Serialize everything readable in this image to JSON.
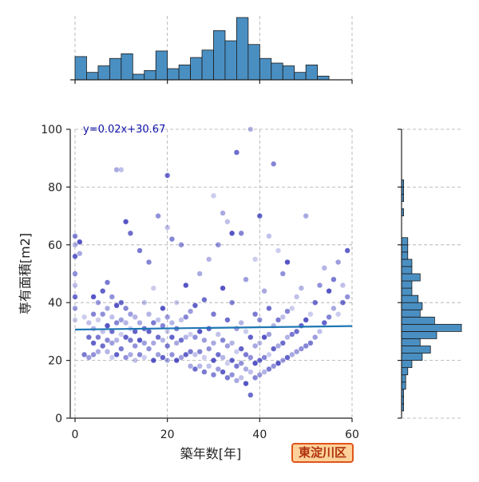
{
  "chart_data": {
    "type": "scatter",
    "xlabel": "築年数[年]",
    "ylabel": "専有面積[m2]",
    "xlim": [
      0,
      60
    ],
    "ylim": [
      0,
      100
    ],
    "x_ticks": [
      0,
      20,
      40,
      60
    ],
    "y_ticks": [
      0,
      20,
      40,
      60,
      80,
      100
    ],
    "grid": true,
    "point_color": "#1515b0",
    "regression": {
      "slope": 0.02,
      "intercept": 30.67,
      "label": "y=0.02x+30.67",
      "color": "#1f77b4",
      "label_color": "#1010aa"
    },
    "ward_label": "東淀川区",
    "badge_colors": {
      "fill": "#fcd29a",
      "border": "#e0541a",
      "text": "#b0310c"
    },
    "hist_color": "#4a8fc2",
    "top_histogram": {
      "bin_width": 2.5,
      "counts": [
        25,
        8,
        15,
        23,
        28,
        6,
        10,
        31,
        12,
        16,
        24,
        32,
        53,
        42,
        67,
        38,
        23,
        18,
        15,
        8,
        16,
        4,
        0
      ]
    },
    "right_histogram": {
      "bin_width": 2.5,
      "counts": [
        0,
        1,
        1,
        1,
        2,
        2,
        3,
        5,
        10,
        14,
        9,
        17,
        29,
        16,
        9,
        10,
        8,
        5,
        5,
        9,
        5,
        5,
        3,
        3,
        3,
        0,
        0,
        0,
        1,
        0,
        1,
        1,
        1,
        0,
        0,
        0,
        0,
        0,
        0,
        0
      ]
    },
    "scatter_points": [
      [
        0,
        34
      ],
      [
        0,
        38
      ],
      [
        0,
        42
      ],
      [
        0,
        46
      ],
      [
        0,
        50
      ],
      [
        0,
        56
      ],
      [
        0,
        60
      ],
      [
        0,
        63
      ],
      [
        1,
        61
      ],
      [
        1,
        57
      ],
      [
        2,
        22
      ],
      [
        2,
        35
      ],
      [
        3,
        21
      ],
      [
        3,
        28
      ],
      [
        3,
        33
      ],
      [
        4,
        22
      ],
      [
        4,
        26
      ],
      [
        4,
        31
      ],
      [
        4,
        36
      ],
      [
        4,
        42
      ],
      [
        5,
        23
      ],
      [
        5,
        28
      ],
      [
        5,
        34
      ],
      [
        5,
        40
      ],
      [
        6,
        25
      ],
      [
        6,
        30
      ],
      [
        6,
        36
      ],
      [
        6,
        44
      ],
      [
        7,
        23
      ],
      [
        7,
        27
      ],
      [
        7,
        32
      ],
      [
        7,
        38
      ],
      [
        7,
        47
      ],
      [
        8,
        21
      ],
      [
        8,
        26
      ],
      [
        8,
        30
      ],
      [
        8,
        35
      ],
      [
        8,
        42
      ],
      [
        9,
        22
      ],
      [
        9,
        27
      ],
      [
        9,
        33
      ],
      [
        9,
        39
      ],
      [
        9,
        86
      ],
      [
        10,
        24
      ],
      [
        10,
        29
      ],
      [
        10,
        34
      ],
      [
        10,
        40
      ],
      [
        10,
        86
      ],
      [
        11,
        21
      ],
      [
        11,
        28
      ],
      [
        11,
        33
      ],
      [
        11,
        38
      ],
      [
        11,
        68
      ],
      [
        12,
        22
      ],
      [
        12,
        27
      ],
      [
        12,
        31
      ],
      [
        12,
        36
      ],
      [
        12,
        64
      ],
      [
        13,
        20
      ],
      [
        13,
        25
      ],
      [
        13,
        30
      ],
      [
        13,
        35
      ],
      [
        14,
        22
      ],
      [
        14,
        27
      ],
      [
        14,
        33
      ],
      [
        14,
        58
      ],
      [
        15,
        21
      ],
      [
        15,
        26
      ],
      [
        15,
        31
      ],
      [
        15,
        40
      ],
      [
        16,
        24
      ],
      [
        16,
        30
      ],
      [
        16,
        36
      ],
      [
        16,
        54
      ],
      [
        17,
        20
      ],
      [
        17,
        26
      ],
      [
        17,
        33
      ],
      [
        17,
        45
      ],
      [
        18,
        22
      ],
      [
        18,
        28
      ],
      [
        18,
        34
      ],
      [
        18,
        70
      ],
      [
        19,
        21
      ],
      [
        19,
        27
      ],
      [
        19,
        32
      ],
      [
        19,
        38
      ],
      [
        20,
        20
      ],
      [
        20,
        25
      ],
      [
        20,
        30
      ],
      [
        20,
        35
      ],
      [
        20,
        84
      ],
      [
        20,
        66
      ],
      [
        21,
        22
      ],
      [
        21,
        28
      ],
      [
        21,
        33
      ],
      [
        21,
        62
      ],
      [
        22,
        20
      ],
      [
        22,
        26
      ],
      [
        22,
        31
      ],
      [
        22,
        40
      ],
      [
        23,
        21
      ],
      [
        23,
        27
      ],
      [
        23,
        34
      ],
      [
        23,
        60
      ],
      [
        24,
        22
      ],
      [
        24,
        28
      ],
      [
        24,
        35
      ],
      [
        24,
        46
      ],
      [
        25,
        18
      ],
      [
        25,
        23
      ],
      [
        25,
        29
      ],
      [
        25,
        37
      ],
      [
        26,
        17
      ],
      [
        26,
        22
      ],
      [
        26,
        28
      ],
      [
        26,
        39
      ],
      [
        27,
        18
      ],
      [
        27,
        23
      ],
      [
        27,
        30
      ],
      [
        27,
        50
      ],
      [
        28,
        16
      ],
      [
        28,
        21
      ],
      [
        28,
        27
      ],
      [
        28,
        41
      ],
      [
        29,
        18
      ],
      [
        29,
        24
      ],
      [
        29,
        31
      ],
      [
        29,
        55
      ],
      [
        30,
        15
      ],
      [
        30,
        20
      ],
      [
        30,
        26
      ],
      [
        30,
        36
      ],
      [
        30,
        77
      ],
      [
        31,
        17
      ],
      [
        31,
        22
      ],
      [
        31,
        29
      ],
      [
        31,
        60
      ],
      [
        32,
        16
      ],
      [
        32,
        21
      ],
      [
        32,
        27
      ],
      [
        32,
        45
      ],
      [
        32,
        71
      ],
      [
        33,
        14
      ],
      [
        33,
        19
      ],
      [
        33,
        25
      ],
      [
        33,
        34
      ],
      [
        33,
        68
      ],
      [
        34,
        15
      ],
      [
        34,
        20
      ],
      [
        34,
        26
      ],
      [
        34,
        40
      ],
      [
        34,
        64
      ],
      [
        35,
        13
      ],
      [
        35,
        18
      ],
      [
        35,
        23
      ],
      [
        35,
        31
      ],
      [
        35,
        92
      ],
      [
        36,
        14
      ],
      [
        36,
        19
      ],
      [
        36,
        24
      ],
      [
        36,
        33
      ],
      [
        36,
        64
      ],
      [
        37,
        12
      ],
      [
        37,
        17
      ],
      [
        37,
        22
      ],
      [
        37,
        30
      ],
      [
        37,
        48
      ],
      [
        38,
        8
      ],
      [
        38,
        16
      ],
      [
        38,
        21
      ],
      [
        38,
        28
      ],
      [
        38,
        100
      ],
      [
        39,
        14
      ],
      [
        39,
        19
      ],
      [
        39,
        25
      ],
      [
        39,
        36
      ],
      [
        39,
        55
      ],
      [
        40,
        15
      ],
      [
        40,
        20
      ],
      [
        40,
        26
      ],
      [
        40,
        34
      ],
      [
        40,
        70
      ],
      [
        41,
        16
      ],
      [
        41,
        21
      ],
      [
        41,
        28
      ],
      [
        41,
        44
      ],
      [
        42,
        17
      ],
      [
        42,
        22
      ],
      [
        42,
        29
      ],
      [
        42,
        38
      ],
      [
        42,
        63
      ],
      [
        43,
        18
      ],
      [
        43,
        24
      ],
      [
        43,
        32
      ],
      [
        43,
        88
      ],
      [
        44,
        19
      ],
      [
        44,
        25
      ],
      [
        44,
        34
      ],
      [
        44,
        58
      ],
      [
        45,
        20
      ],
      [
        45,
        26
      ],
      [
        45,
        35
      ],
      [
        45,
        50
      ],
      [
        46,
        21
      ],
      [
        46,
        28
      ],
      [
        46,
        37
      ],
      [
        46,
        54
      ],
      [
        47,
        22
      ],
      [
        47,
        29
      ],
      [
        47,
        38
      ],
      [
        48,
        23
      ],
      [
        48,
        30
      ],
      [
        48,
        42
      ],
      [
        49,
        24
      ],
      [
        49,
        32
      ],
      [
        49,
        45
      ],
      [
        50,
        25
      ],
      [
        50,
        34
      ],
      [
        50,
        70
      ],
      [
        51,
        26
      ],
      [
        51,
        36
      ],
      [
        52,
        28
      ],
      [
        52,
        40
      ],
      [
        53,
        30
      ],
      [
        53,
        46
      ],
      [
        54,
        33
      ],
      [
        54,
        52
      ],
      [
        55,
        35
      ],
      [
        55,
        44
      ],
      [
        56,
        38
      ],
      [
        56,
        48
      ],
      [
        57,
        36
      ],
      [
        57,
        54
      ],
      [
        58,
        40
      ],
      [
        58,
        46
      ],
      [
        59,
        42
      ],
      [
        59,
        58
      ]
    ]
  }
}
